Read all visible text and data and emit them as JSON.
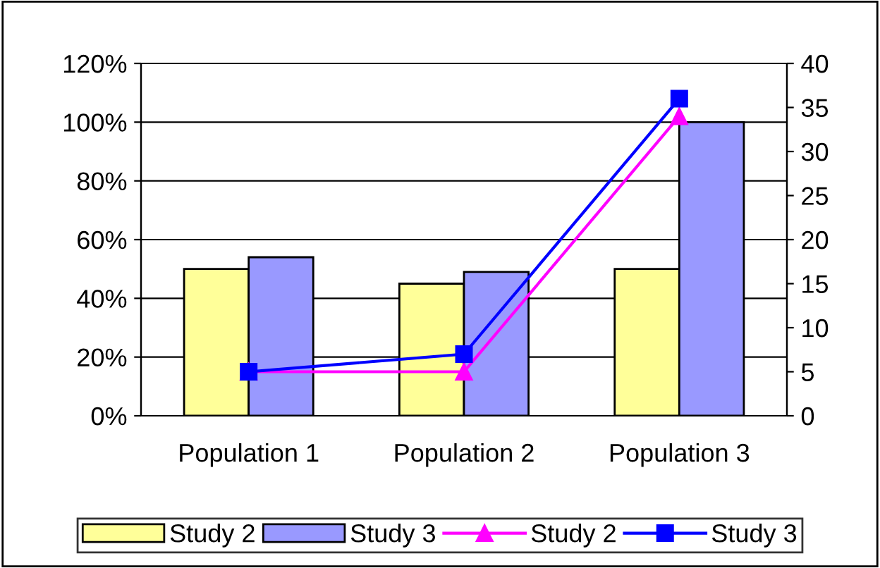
{
  "chart_data": {
    "type": "bar",
    "categories": [
      "Population 1",
      "Population 2",
      "Population 3"
    ],
    "series": [
      {
        "name": "Study 2",
        "color": "#ffff99",
        "values": [
          50,
          45,
          50
        ]
      },
      {
        "name": "Study 3",
        "color": "#9999ff",
        "values": [
          54,
          49,
          100
        ]
      },
      {
        "name": "Study 2",
        "type": "line",
        "axis": "y2",
        "color": "#ff00ff",
        "marker": "triangle",
        "values": [
          5,
          5,
          34
        ]
      },
      {
        "name": "Study 3",
        "type": "line",
        "axis": "y2",
        "color": "#0000ff",
        "marker": "square",
        "values": [
          5,
          7,
          36
        ]
      }
    ],
    "ylim": [
      0,
      120
    ],
    "yticks": [
      {
        "value": 0,
        "label": "0%"
      },
      {
        "value": 20,
        "label": "20%"
      },
      {
        "value": 40,
        "label": "40%"
      },
      {
        "value": 60,
        "label": "60%"
      },
      {
        "value": 80,
        "label": "80%"
      },
      {
        "value": 100,
        "label": "100%"
      },
      {
        "value": 120,
        "label": "120%"
      }
    ],
    "y2lim": [
      0,
      40
    ],
    "y2ticks": [
      0,
      5,
      10,
      15,
      20,
      25,
      30,
      35,
      40
    ],
    "grid": "y",
    "legend": "bottom",
    "line_style": "solid"
  }
}
